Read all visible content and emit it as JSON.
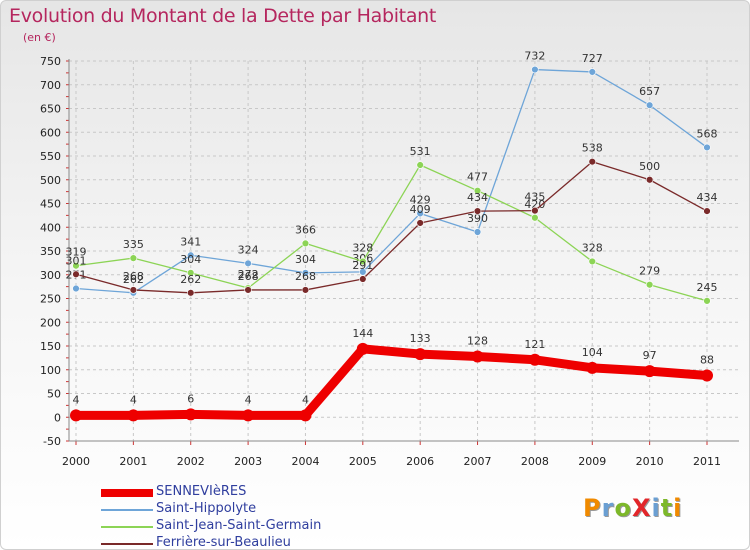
{
  "header": {
    "title": "Evolution du Montant de la Dette par Habitant",
    "unit": "(en €)"
  },
  "logo": {
    "text": "ProXiti",
    "letter_colors": [
      "#f08a00",
      "#6a9fd3",
      "#7db82a",
      "#e2262a",
      "#6a9fd3",
      "#7db82a",
      "#f08a00"
    ]
  },
  "chart_data": {
    "type": "line",
    "title": "Evolution du Montant de la Dette par Habitant",
    "ylabel": "(en €)",
    "xlabel": "",
    "ylim": [
      -50,
      750
    ],
    "yticks": [
      -50,
      0,
      50,
      100,
      150,
      200,
      250,
      300,
      350,
      400,
      450,
      500,
      550,
      600,
      650,
      700,
      750
    ],
    "categories": [
      "2000",
      "2001",
      "2002",
      "2003",
      "2004",
      "2005",
      "2006",
      "2007",
      "2008",
      "2009",
      "2010",
      "2011"
    ],
    "grid": true,
    "legend_position": "bottom-left",
    "series": [
      {
        "name": "SENNEVIèRES",
        "color": "#ee0000",
        "width": 9,
        "values": [
          4,
          4,
          6,
          4,
          4,
          144,
          133,
          128,
          121,
          104,
          97,
          88
        ]
      },
      {
        "name": "Saint-Hippolyte",
        "color": "#6ea5d8",
        "width": 1.3,
        "values": [
          271,
          262,
          341,
          324,
          304,
          306,
          429,
          390,
          732,
          727,
          657,
          568
        ]
      },
      {
        "name": "Saint-Jean-Saint-Germain",
        "color": "#8cd455",
        "width": 1.3,
        "values": [
          319,
          335,
          304,
          272,
          366,
          328,
          531,
          477,
          420,
          328,
          279,
          245
        ]
      },
      {
        "name": "Ferrière-sur-Beaulieu",
        "color": "#7a2a2a",
        "width": 1.3,
        "values": [
          301,
          268,
          262,
          268,
          268,
          291,
          409,
          434,
          435,
          538,
          500,
          434
        ]
      }
    ]
  }
}
